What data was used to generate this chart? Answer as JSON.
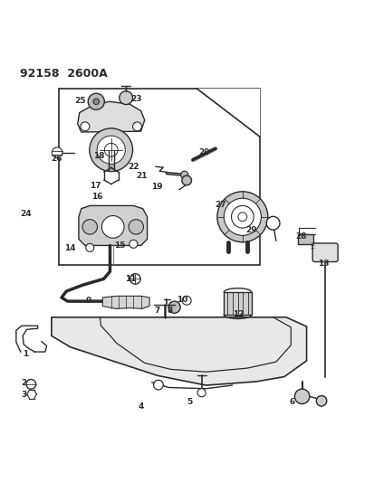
{
  "title": "92158  2600A",
  "bg_color": "#ffffff",
  "line_color": "#2a2a2a",
  "figsize": [
    4.14,
    5.33
  ],
  "dpi": 100
}
